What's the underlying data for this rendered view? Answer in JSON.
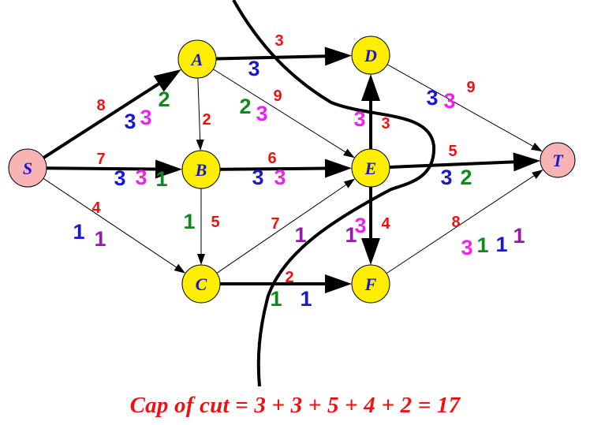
{
  "colors": {
    "capacity": "#ee1111",
    "flow_blue": "#1a1acc",
    "flow_magenta": "#ee22ee",
    "flow_green": "#11881b",
    "flow_purple": "#991aaa",
    "node_fill": "#ffee00",
    "terminal_fill": "#f8b4b4"
  },
  "nodes": [
    {
      "id": "S",
      "label": "S"
    },
    {
      "id": "A",
      "label": "A"
    },
    {
      "id": "B",
      "label": "B"
    },
    {
      "id": "C",
      "label": "C"
    },
    {
      "id": "D",
      "label": "D"
    },
    {
      "id": "E",
      "label": "E"
    },
    {
      "id": "F",
      "label": "F"
    },
    {
      "id": "T",
      "label": "T"
    }
  ],
  "edges": [
    {
      "from": "S",
      "to": "A",
      "capacity": "8",
      "flows": [
        "3",
        "3",
        "2"
      ]
    },
    {
      "from": "S",
      "to": "B",
      "capacity": "7",
      "flows": [
        "3",
        "3",
        "1"
      ]
    },
    {
      "from": "S",
      "to": "C",
      "capacity": "4",
      "flows": [
        "1",
        "1"
      ]
    },
    {
      "from": "A",
      "to": "D",
      "capacity": "3",
      "flows": [
        "3"
      ]
    },
    {
      "from": "A",
      "to": "B",
      "capacity": "2",
      "flows": []
    },
    {
      "from": "A",
      "to": "E",
      "capacity": "9",
      "flows": [
        "2",
        "3"
      ]
    },
    {
      "from": "B",
      "to": "E",
      "capacity": "6",
      "flows": [
        "3",
        "3"
      ]
    },
    {
      "from": "B",
      "to": "C",
      "capacity": "5",
      "flows": [
        "1"
      ]
    },
    {
      "from": "C",
      "to": "E",
      "capacity": "7",
      "flows": [
        "1"
      ]
    },
    {
      "from": "C",
      "to": "F",
      "capacity": "2",
      "flows": [
        "1",
        "1"
      ]
    },
    {
      "from": "E",
      "to": "D",
      "capacity": "3",
      "flows": [
        "3"
      ]
    },
    {
      "from": "E",
      "to": "T",
      "capacity": "5",
      "flows": [
        "3",
        "2"
      ]
    },
    {
      "from": "E",
      "to": "F",
      "capacity": "4",
      "flows": [
        "1",
        "3"
      ]
    },
    {
      "from": "D",
      "to": "T",
      "capacity": "9",
      "flows": [
        "3",
        "3"
      ]
    },
    {
      "from": "F",
      "to": "T",
      "capacity": "8",
      "flows": [
        "3",
        "1",
        "1",
        "1"
      ]
    }
  ],
  "caption": "Cap of cut = 3 + 3 + 5 + 4 + 2 = 17"
}
